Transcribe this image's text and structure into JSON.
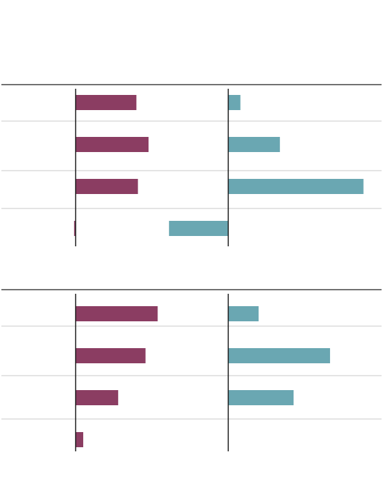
{
  "colors": {
    "series_a": "#8b3d62",
    "series_b": "#6aa7b2",
    "axis": "#1a1a1a",
    "divider": "#c8c8c8"
  },
  "chart_data": [
    {
      "type": "bar",
      "orientation": "horizontal",
      "title": "",
      "xlabel": "",
      "ylabel": "",
      "categories": [
        "",
        "",
        "",
        ""
      ],
      "grid": false,
      "legend": "none",
      "series": [
        {
          "values": [
            0.4,
            0.48,
            0.41,
            -0.01
          ],
          "xlim": [
            -0.5,
            1.0
          ]
        },
        {
          "values": [
            0.08,
            0.34,
            0.89,
            -0.39
          ],
          "xlim": [
            -0.5,
            1.0
          ]
        }
      ]
    },
    {
      "type": "bar",
      "orientation": "horizontal",
      "title": "",
      "xlabel": "",
      "ylabel": "",
      "categories": [
        "",
        "",
        "",
        ""
      ],
      "grid": false,
      "legend": "none",
      "series": [
        {
          "values": [
            0.54,
            0.46,
            0.28,
            0.05
          ],
          "xlim": [
            -0.5,
            1.0
          ]
        },
        {
          "values": [
            0.2,
            0.67,
            0.43,
            0.0
          ],
          "xlim": [
            -0.5,
            1.0
          ]
        }
      ]
    }
  ]
}
